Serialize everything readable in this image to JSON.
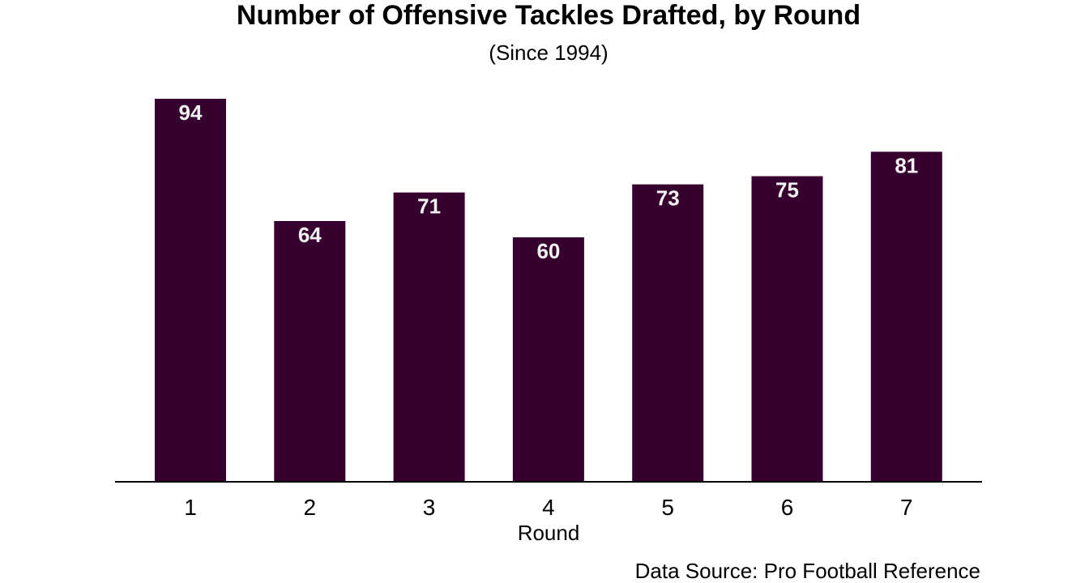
{
  "chart_data": {
    "type": "bar",
    "title": "Number of Offensive Tackles Drafted, by Round",
    "subtitle": "(Since 1994)",
    "categories": [
      "1",
      "2",
      "3",
      "4",
      "5",
      "6",
      "7"
    ],
    "values": [
      94,
      64,
      71,
      60,
      73,
      75,
      81
    ],
    "xlabel": "Round",
    "ylabel": "",
    "ylim": [
      0,
      100
    ],
    "grid": false,
    "bar_color": "#36002f",
    "label_color": "#f2f2f2",
    "source": "Data Source: Pro Football Reference"
  }
}
